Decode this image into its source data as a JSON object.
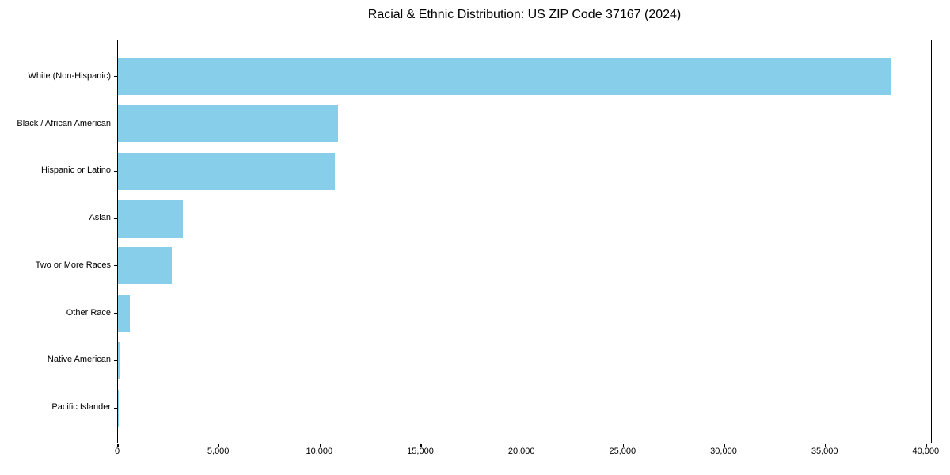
{
  "page": {
    "background": "#ffffff"
  },
  "chart_data": {
    "type": "bar",
    "orientation": "horizontal",
    "title": "Racial & Ethnic Distribution: US ZIP Code 37167 (2024)",
    "categories": [
      "White (Non-Hispanic)",
      "Black / African American",
      "Hispanic or Latino",
      "Asian",
      "Two or More Races",
      "Other Race",
      "Native American",
      "Pacific Islander"
    ],
    "values": [
      38300,
      10900,
      10750,
      3200,
      2650,
      580,
      80,
      25
    ],
    "xlabel": "",
    "ylabel": "",
    "xlim": [
      0,
      40300
    ],
    "xticks": [
      0,
      5000,
      10000,
      15000,
      20000,
      25000,
      30000,
      35000,
      40000
    ],
    "xtick_labels": [
      "0",
      "5,000",
      "10,000",
      "15,000",
      "20,000",
      "25,000",
      "30,000",
      "35,000",
      "40,000"
    ],
    "bar_color": "#87CEEB",
    "grid": false,
    "legend": "none",
    "plot_background": "#ffffff",
    "spine_color": "#000000",
    "text_color": "#000000"
  }
}
